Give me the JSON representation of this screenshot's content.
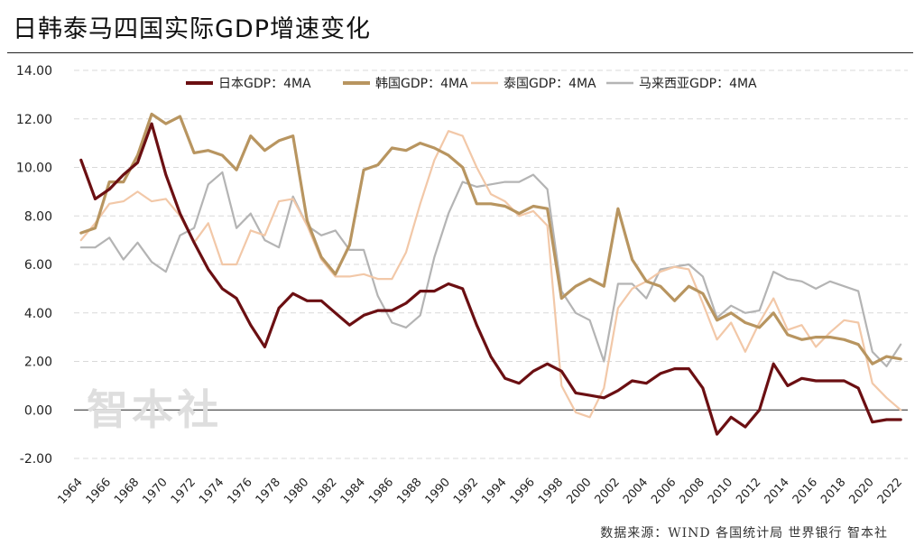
{
  "title": "日韩泰马四国实际GDP增速变化",
  "source": "数据来源：WIND 各国统计局 世界银行 智本社",
  "watermark": "智本社",
  "colors": {
    "japan": "#6b0f12",
    "korea": "#b89560",
    "thailand": "#f2c8a8",
    "malaysia": "#b4b4b4",
    "grid": "#d9d9d9",
    "axis": "#222222"
  },
  "chart_data": {
    "type": "line",
    "title": "日韩泰马四国实际GDP增速变化",
    "xlabel": "",
    "ylabel": "",
    "ylim": [
      -2,
      14
    ],
    "yticks": [
      "14.00",
      "12.00",
      "10.00",
      "8.00",
      "6.00",
      "4.00",
      "2.00",
      "0.00",
      "-2.00"
    ],
    "xticks": [
      "1964",
      "1966",
      "1968",
      "1970",
      "1972",
      "1974",
      "1976",
      "1978",
      "1980",
      "1982",
      "1984",
      "1986",
      "1988",
      "1990",
      "1992",
      "1994",
      "1996",
      "1998",
      "2000",
      "2002",
      "2004",
      "2006",
      "2008",
      "2010",
      "2012",
      "2014",
      "2016",
      "2018",
      "2020",
      "2022"
    ],
    "grid": "horizontal dashed",
    "legend_position": "top",
    "x": [
      1964,
      1965,
      1966,
      1967,
      1968,
      1969,
      1970,
      1971,
      1972,
      1973,
      1974,
      1975,
      1976,
      1977,
      1978,
      1979,
      1980,
      1981,
      1982,
      1983,
      1984,
      1985,
      1986,
      1987,
      1988,
      1989,
      1990,
      1991,
      1992,
      1993,
      1994,
      1995,
      1996,
      1997,
      1998,
      1999,
      2000,
      2001,
      2002,
      2003,
      2004,
      2005,
      2006,
      2007,
      2008,
      2009,
      2010,
      2011,
      2012,
      2013,
      2014,
      2015,
      2016,
      2017,
      2018,
      2019,
      2020,
      2021,
      2022
    ],
    "series": [
      {
        "name": "日本GDP：4MA",
        "key": "japan",
        "values": [
          10.3,
          8.7,
          9.1,
          9.7,
          10.2,
          11.8,
          9.7,
          8.1,
          6.9,
          5.8,
          5.0,
          4.6,
          3.5,
          2.6,
          4.2,
          4.8,
          4.5,
          4.5,
          4.0,
          3.5,
          3.9,
          4.1,
          4.1,
          4.4,
          4.9,
          4.9,
          5.2,
          5.0,
          3.5,
          2.2,
          1.3,
          1.1,
          1.6,
          1.9,
          1.6,
          0.7,
          0.6,
          0.5,
          0.8,
          1.2,
          1.1,
          1.5,
          1.7,
          1.7,
          0.9,
          -1.0,
          -0.3,
          -0.7,
          0.0,
          1.9,
          1.0,
          1.3,
          1.2,
          1.2,
          1.2,
          0.9,
          -0.5,
          -0.4,
          -0.4
        ]
      },
      {
        "name": "韩国GDP：4MA",
        "key": "korea",
        "values": [
          7.3,
          7.5,
          9.4,
          9.4,
          10.5,
          12.2,
          11.8,
          12.1,
          10.6,
          10.7,
          10.5,
          9.9,
          11.3,
          10.7,
          11.1,
          11.3,
          7.8,
          6.3,
          5.6,
          6.8,
          9.9,
          10.1,
          10.8,
          10.7,
          11.0,
          10.8,
          10.5,
          10.0,
          8.5,
          8.5,
          8.4,
          8.1,
          8.4,
          8.3,
          4.6,
          5.1,
          5.4,
          5.1,
          8.3,
          6.2,
          5.3,
          5.1,
          4.5,
          5.1,
          4.8,
          3.7,
          4.0,
          3.6,
          3.4,
          4.0,
          3.1,
          2.9,
          3.0,
          3.0,
          2.9,
          2.7,
          1.9,
          2.2,
          2.1
        ]
      },
      {
        "name": "泰国GDP：4MA",
        "key": "thailand",
        "values": [
          7.0,
          7.7,
          8.5,
          8.6,
          9.0,
          8.6,
          8.7,
          8.0,
          6.9,
          7.7,
          6.0,
          6.0,
          7.4,
          7.2,
          8.6,
          8.7,
          7.6,
          6.2,
          5.5,
          5.5,
          5.6,
          5.4,
          5.4,
          6.5,
          8.5,
          10.3,
          11.5,
          11.3,
          10.0,
          8.9,
          8.6,
          8.0,
          8.2,
          7.6,
          1.0,
          -0.1,
          -0.3,
          0.9,
          4.2,
          5.0,
          5.3,
          5.7,
          5.9,
          5.8,
          4.4,
          2.9,
          3.6,
          2.4,
          3.6,
          4.6,
          3.3,
          3.5,
          2.6,
          3.2,
          3.7,
          3.6,
          1.1,
          0.5,
          0.0
        ]
      },
      {
        "name": "马来西亚GDP：4MA",
        "key": "malaysia",
        "values": [
          6.7,
          6.7,
          7.1,
          6.2,
          6.9,
          6.1,
          5.7,
          7.2,
          7.5,
          9.3,
          9.8,
          7.5,
          8.1,
          7.0,
          6.7,
          8.8,
          7.6,
          7.2,
          7.4,
          6.6,
          6.6,
          4.7,
          3.6,
          3.4,
          3.9,
          6.3,
          8.1,
          9.4,
          9.2,
          9.3,
          9.4,
          9.4,
          9.7,
          9.1,
          4.9,
          4.0,
          3.7,
          2.0,
          5.2,
          5.2,
          4.6,
          5.8,
          5.9,
          6.0,
          5.5,
          3.8,
          4.3,
          4.0,
          4.1,
          5.7,
          5.4,
          5.3,
          5.0,
          5.3,
          5.1,
          4.9,
          2.4,
          1.8,
          2.7
        ]
      }
    ]
  }
}
